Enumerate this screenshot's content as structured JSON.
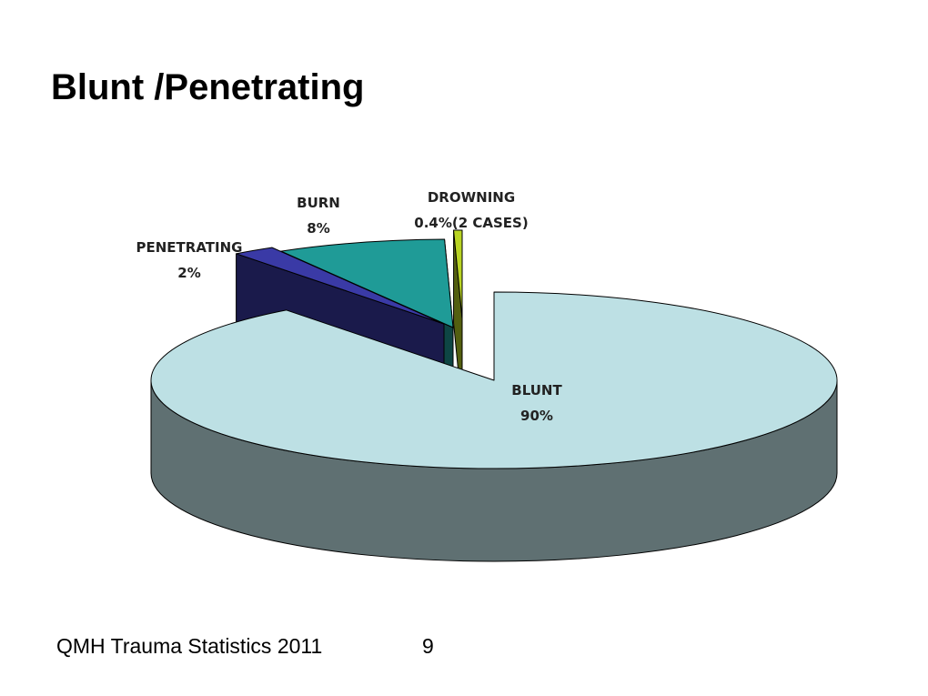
{
  "title": "Blunt /Penetrating",
  "chart_data": {
    "type": "pie3d",
    "categories": [
      "BLUNT",
      "PENETRATING",
      "BURN",
      "DROWNING"
    ],
    "values": [
      90,
      2,
      8,
      0.4
    ],
    "value_labels": [
      "90%",
      "2%",
      "8%",
      "0.4%(2 CASES)"
    ],
    "colors": [
      "#bde0e4",
      "#3a3aa6",
      "#1f9b97",
      "#b9d423"
    ]
  },
  "footer": {
    "text": "QMH Trauma Statistics 2011",
    "page": "9"
  }
}
